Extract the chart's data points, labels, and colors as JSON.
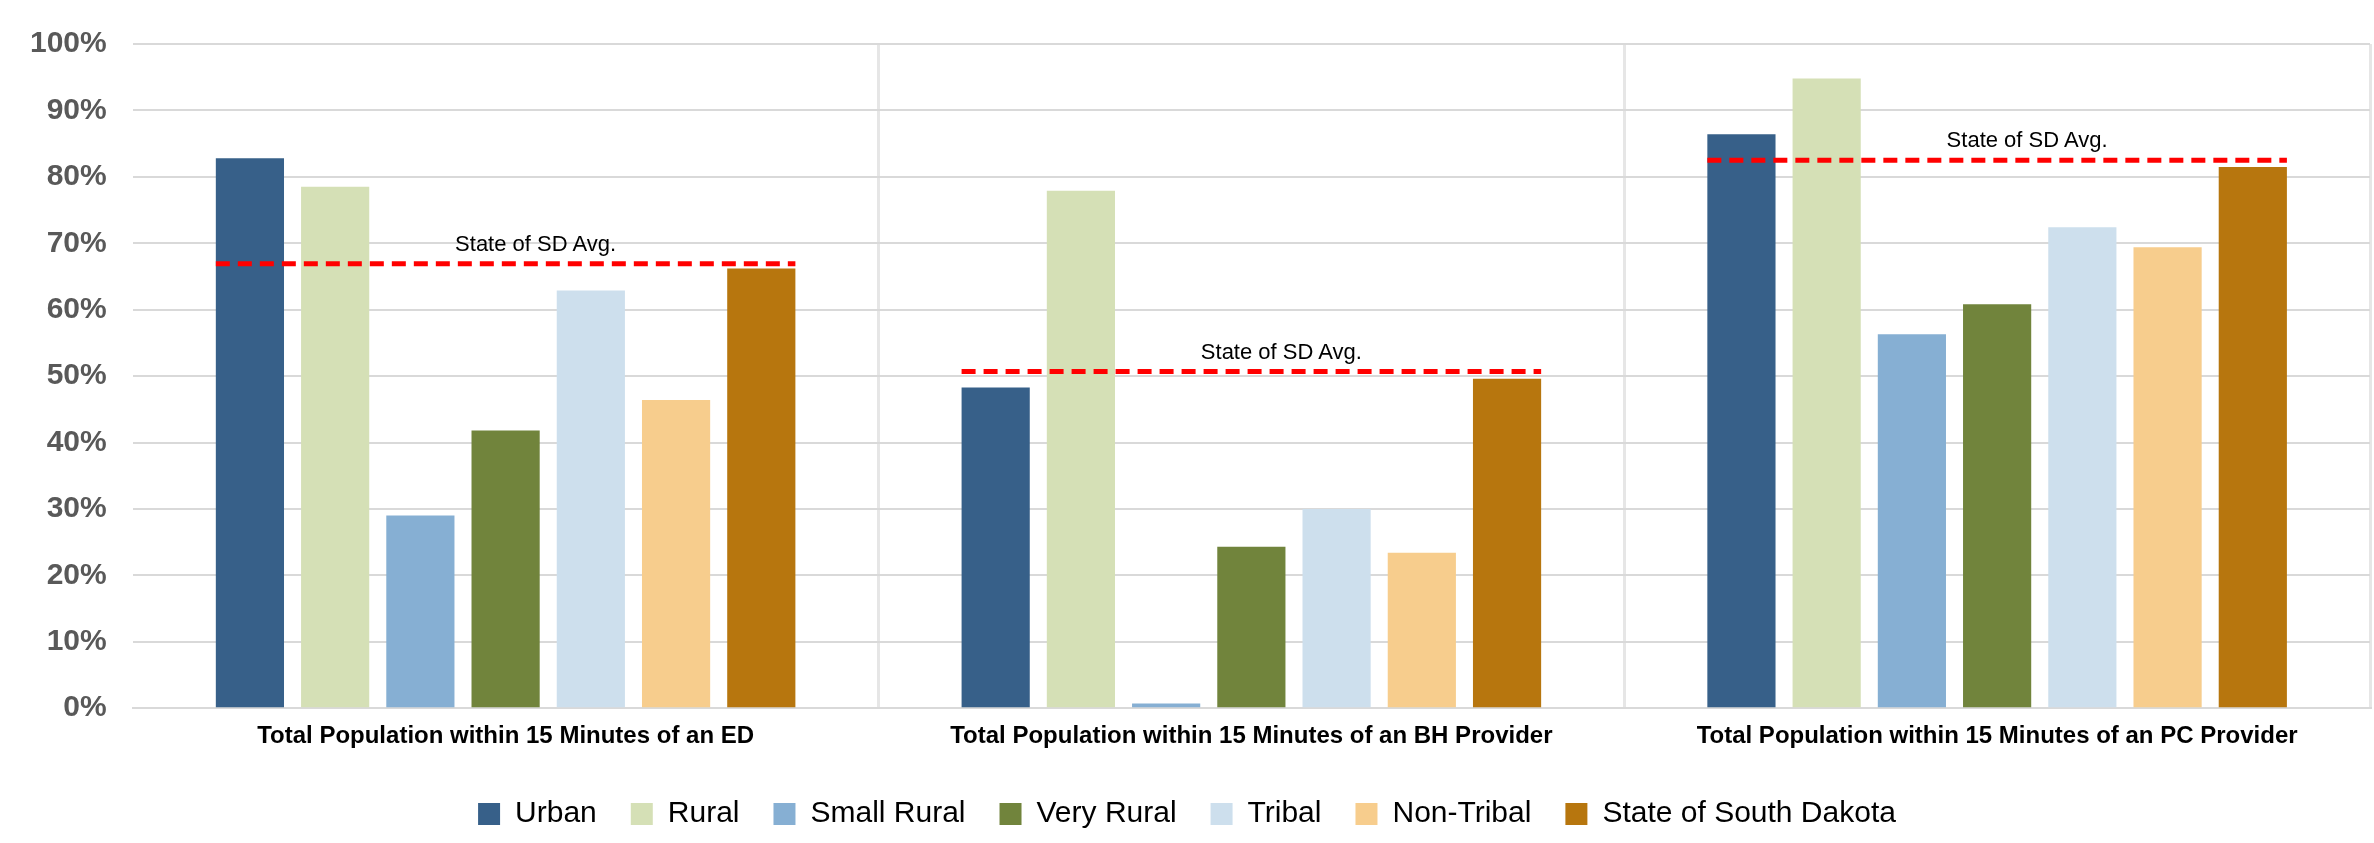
{
  "chart_data": {
    "type": "bar",
    "categories": [
      "Total Population within 15 Minutes of an ED",
      "Total Population within 15 Minutes of an BH Provider",
      "Total Population within 15 Minutes of an PC Provider"
    ],
    "series": [
      {
        "name": "Urban",
        "color": "#376089",
        "values": [
          82.8,
          48.3,
          86.4
        ]
      },
      {
        "name": "Rural",
        "color": "#d5e0b6",
        "values": [
          78.5,
          77.9,
          94.8
        ]
      },
      {
        "name": "Small Rural",
        "color": "#86afd3",
        "values": [
          29.0,
          0.7,
          56.3
        ]
      },
      {
        "name": "Very Rural",
        "color": "#71843c",
        "values": [
          41.8,
          24.3,
          60.8
        ]
      },
      {
        "name": "Tribal",
        "color": "#cddfed",
        "values": [
          62.9,
          30.0,
          72.4
        ]
      },
      {
        "name": "Non-Tribal",
        "color": "#f7cd8d",
        "values": [
          46.4,
          23.4,
          69.4
        ]
      },
      {
        "name": "State of South Dakota",
        "color": "#b7760e",
        "values": [
          66.2,
          49.6,
          81.5
        ]
      }
    ],
    "ylim": [
      0,
      100
    ],
    "yticks": [
      {
        "value": 0,
        "label": "0%"
      },
      {
        "value": 10,
        "label": "10%"
      },
      {
        "value": 20,
        "label": "20%"
      },
      {
        "value": 30,
        "label": "30%"
      },
      {
        "value": 40,
        "label": "40%"
      },
      {
        "value": 50,
        "label": "50%"
      },
      {
        "value": 60,
        "label": "60%"
      },
      {
        "value": 70,
        "label": "70%"
      },
      {
        "value": 80,
        "label": "80%"
      },
      {
        "value": 90,
        "label": "90%"
      },
      {
        "value": 100,
        "label": "100%"
      }
    ],
    "ref_lines": [
      {
        "axis": "y",
        "value": 66.9,
        "label": "State of SD Avg.",
        "color": "#ff0000",
        "line_style": "dashed"
      },
      {
        "axis": "y",
        "value": 50.7,
        "label": "State of SD Avg.",
        "color": "#ff0000",
        "line_style": "dashed"
      },
      {
        "axis": "y",
        "value": 82.5,
        "label": "State of SD Avg.",
        "color": "#ff0000",
        "line_style": "dashed"
      }
    ],
    "grid": true,
    "legend": "bottom"
  }
}
